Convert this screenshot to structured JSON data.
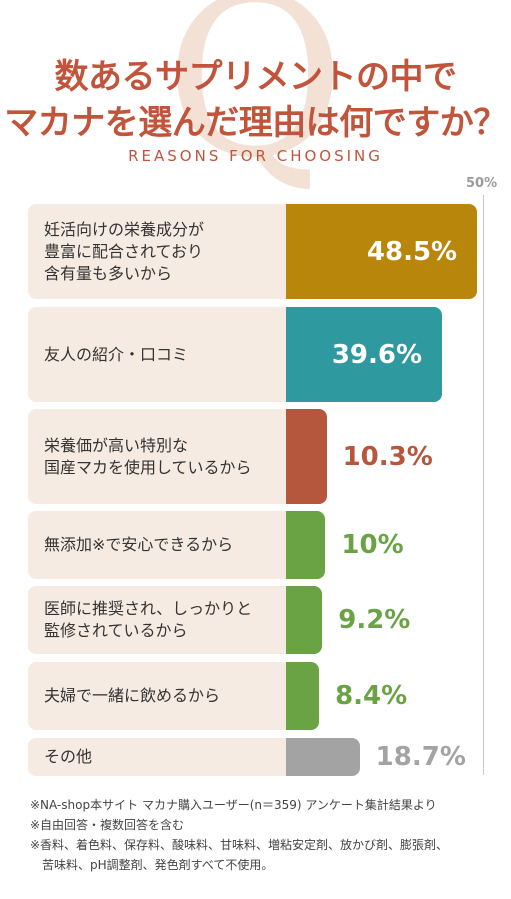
{
  "title": {
    "line1": "数あるサプリメントの中で",
    "line2": "マカナを選んだ理由は何ですか？"
  },
  "subtitle": "REASONS FOR CHOOSING",
  "watermark": "Q",
  "chart_data": {
    "type": "bar",
    "orientation": "horizontal",
    "axis_max_label": "50%",
    "xlim": [
      0,
      50
    ],
    "categories": [
      "妊活向けの栄養成分が\n豊富に配合されており\n含有量も多いから",
      "友人の紹介・口コミ",
      "栄養価が高い特別な\n国産マカを使用しているから",
      "無添加※で安心できるから",
      "医師に推奨され、しっかりと\n監修されているから",
      "夫婦で一緒に飲めるから",
      "その他"
    ],
    "values": [
      48.5,
      39.6,
      10.3,
      10,
      9.2,
      8.4,
      18.7
    ],
    "value_labels": [
      "48.5%",
      "39.6%",
      "10.3%",
      "10%",
      "9.2%",
      "8.4%",
      "18.7%"
    ],
    "bar_colors": [
      "#b8860b",
      "#2e9aa0",
      "#b5573c",
      "#6aa344",
      "#6aa344",
      "#6aa344",
      "#a3a3a3"
    ],
    "label_colors": [
      "#ffffff",
      "#ffffff",
      "#b5573c",
      "#6aa344",
      "#6aa344",
      "#6aa344",
      "#a3a3a3"
    ]
  },
  "notes": [
    "※NA-shop本サイト マカナ購入ユーザー(n＝359) アンケート集計結果より",
    "※自由回答・複数回答を含む",
    "※香料、着色料、保存料、酸味料、甘味料、増粘安定剤、放かび剤、膨張剤、",
    "　苦味料、pH調整剤、発色剤すべて不使用。"
  ]
}
